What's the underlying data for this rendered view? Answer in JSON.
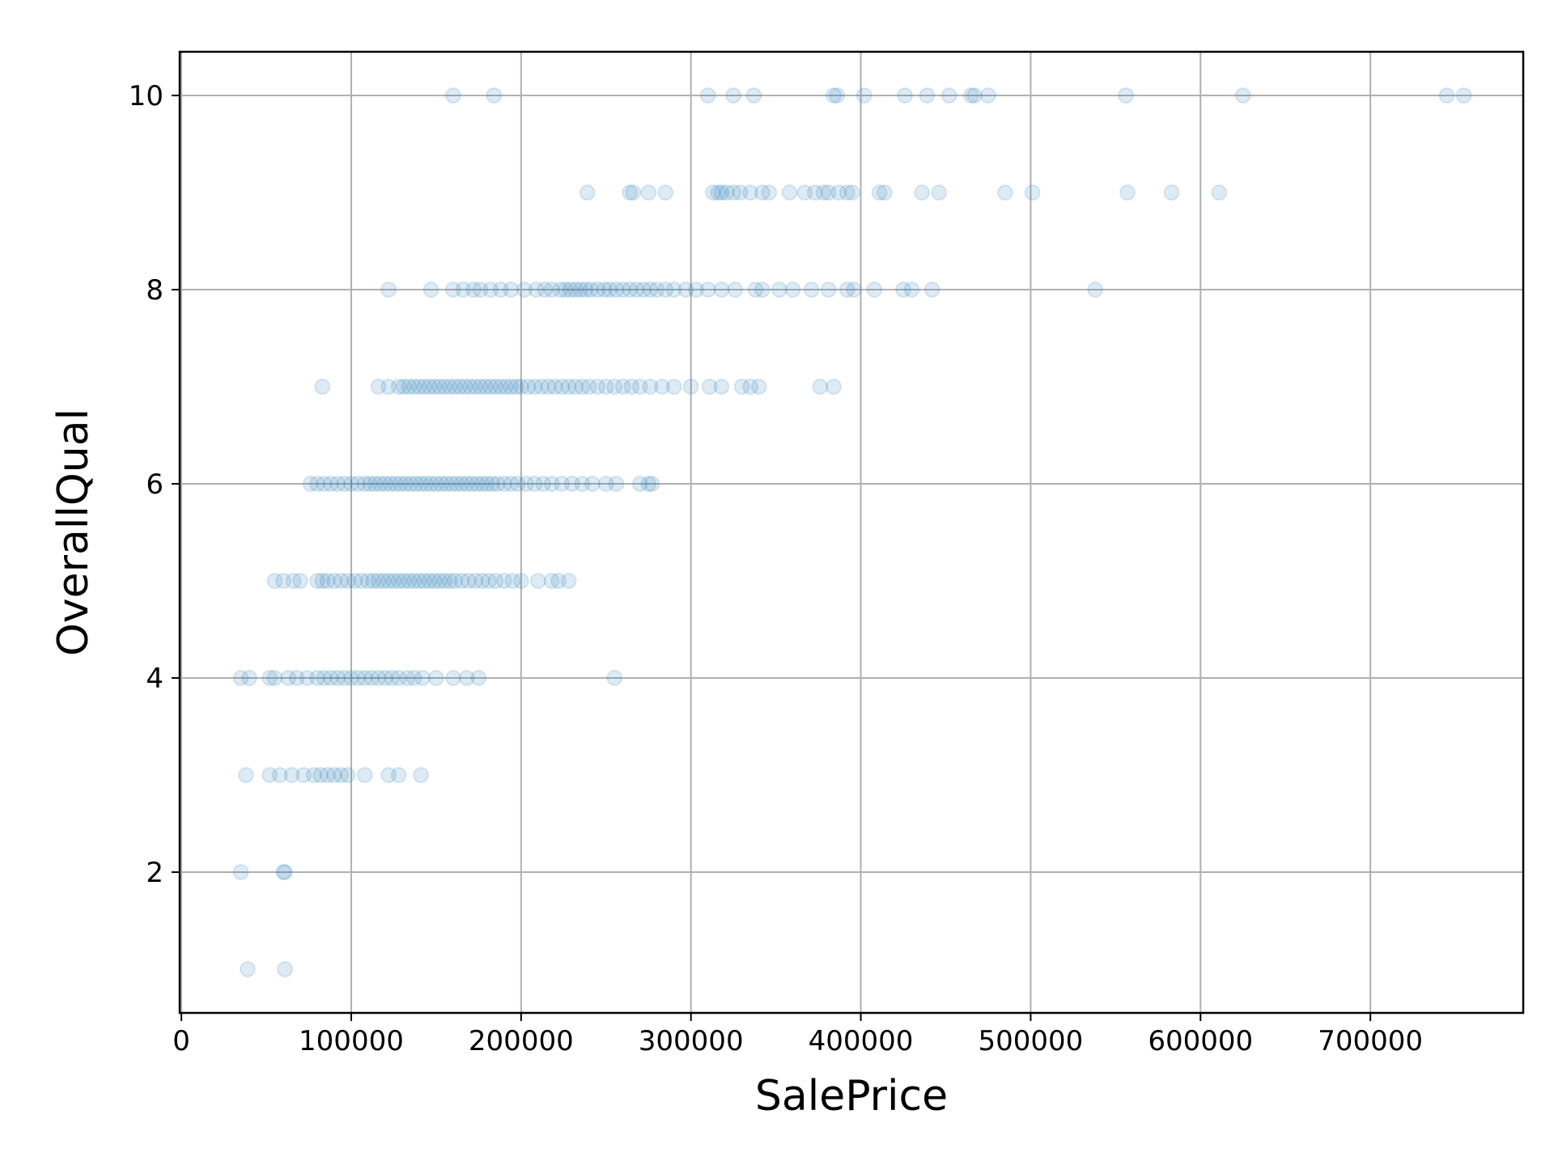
{
  "chart_data": {
    "type": "scatter",
    "xlabel": "SalePrice",
    "ylabel": "OverallQual",
    "xlim": [
      -1000,
      790000
    ],
    "ylim": [
      0.55,
      10.45
    ],
    "xticks": [
      0,
      100000,
      200000,
      300000,
      400000,
      500000,
      600000,
      700000
    ],
    "xtick_labels": [
      "0",
      "100000",
      "200000",
      "300000",
      "400000",
      "500000",
      "600000",
      "700000"
    ],
    "yticks": [
      2,
      4,
      6,
      8,
      10
    ],
    "ytick_labels": [
      "2",
      "4",
      "6",
      "8",
      "10"
    ],
    "grid": true,
    "legend": false,
    "marker_color": "#1f77b4",
    "marker_alpha": 0.15,
    "series": [
      {
        "x": [
          160000,
          184000,
          310000,
          325000,
          337000,
          384000,
          386000,
          402000,
          426000,
          439000,
          452000,
          465000,
          467000,
          475000,
          556000,
          625000,
          745000,
          755000,
          239000,
          264000,
          266000,
          275000,
          285000,
          313000,
          316000,
          318000,
          321000,
          325000,
          329000,
          335000,
          342000,
          346000,
          358000,
          367000,
          373000,
          378000,
          381000,
          387000,
          392000,
          395000,
          411000,
          414000,
          436000,
          446000,
          485000,
          501000,
          557000,
          583000,
          611000,
          122000,
          147000,
          160000,
          166000,
          172000,
          176000,
          182000,
          188000,
          194000,
          202000,
          209000,
          214000,
          218000,
          223000,
          226000,
          229000,
          232000,
          235000,
          238000,
          241000,
          245000,
          249000,
          252000,
          256000,
          260000,
          264000,
          268000,
          272000,
          276000,
          280000,
          285000,
          290000,
          297000,
          303000,
          310000,
          318000,
          326000,
          338000,
          342000,
          352000,
          360000,
          371000,
          381000,
          392000,
          396000,
          408000,
          425000,
          430000,
          442000,
          538000,
          83000,
          116000,
          122000,
          128000,
          131000,
          134000,
          137000,
          140000,
          143000,
          146000,
          149000,
          152000,
          155000,
          158000,
          161000,
          164000,
          167000,
          170000,
          173000,
          176000,
          179000,
          182000,
          185000,
          188000,
          191000,
          194000,
          197000,
          200000,
          204000,
          208000,
          212000,
          216000,
          220000,
          224000,
          228000,
          232000,
          236000,
          240000,
          245000,
          250000,
          255000,
          260000,
          265000,
          270000,
          276000,
          283000,
          290000,
          300000,
          311000,
          318000,
          330000,
          335000,
          340000,
          376000,
          384000,
          76000,
          80000,
          84000,
          88000,
          92000,
          96000,
          100000,
          104000,
          108000,
          111000,
          114000,
          117000,
          120000,
          123000,
          126000,
          129000,
          132000,
          135000,
          138000,
          141000,
          144000,
          147000,
          150000,
          153000,
          156000,
          159000,
          162000,
          165000,
          168000,
          171000,
          174000,
          177000,
          180000,
          183000,
          186000,
          190000,
          194000,
          198000,
          203000,
          208000,
          213000,
          218000,
          224000,
          230000,
          236000,
          242000,
          250000,
          256000,
          270000,
          275000,
          277000,
          55000,
          60000,
          66000,
          70000,
          80000,
          83000,
          86000,
          90000,
          94000,
          98000,
          102000,
          106000,
          110000,
          113000,
          116000,
          119000,
          122000,
          125000,
          128000,
          131000,
          134000,
          137000,
          140000,
          143000,
          146000,
          149000,
          152000,
          155000,
          158000,
          161000,
          165000,
          169000,
          173000,
          177000,
          181000,
          185000,
          190000,
          195000,
          200000,
          210000,
          218000,
          222000,
          228000,
          35000,
          40000,
          52000,
          55000,
          63000,
          68000,
          74000,
          80000,
          84000,
          88000,
          92000,
          96000,
          100000,
          104000,
          108000,
          112000,
          116000,
          120000,
          124000,
          128000,
          133000,
          137000,
          142000,
          150000,
          160000,
          168000,
          175000,
          255000,
          38000,
          52000,
          58000,
          65000,
          72000,
          78000,
          82000,
          86000,
          90000,
          94000,
          98000,
          108000,
          122000,
          128000,
          141000,
          35000,
          60000,
          61000,
          39000,
          61000
        ],
        "y": [
          10,
          10,
          10,
          10,
          10,
          10,
          10,
          10,
          10,
          10,
          10,
          10,
          10,
          10,
          10,
          10,
          10,
          10,
          9,
          9,
          9,
          9,
          9,
          9,
          9,
          9,
          9,
          9,
          9,
          9,
          9,
          9,
          9,
          9,
          9,
          9,
          9,
          9,
          9,
          9,
          9,
          9,
          9,
          9,
          9,
          9,
          9,
          9,
          9,
          8,
          8,
          8,
          8,
          8,
          8,
          8,
          8,
          8,
          8,
          8,
          8,
          8,
          8,
          8,
          8,
          8,
          8,
          8,
          8,
          8,
          8,
          8,
          8,
          8,
          8,
          8,
          8,
          8,
          8,
          8,
          8,
          8,
          8,
          8,
          8,
          8,
          8,
          8,
          8,
          8,
          8,
          8,
          8,
          8,
          8,
          8,
          8,
          8,
          8,
          7,
          7,
          7,
          7,
          7,
          7,
          7,
          7,
          7,
          7,
          7,
          7,
          7,
          7,
          7,
          7,
          7,
          7,
          7,
          7,
          7,
          7,
          7,
          7,
          7,
          7,
          7,
          7,
          7,
          7,
          7,
          7,
          7,
          7,
          7,
          7,
          7,
          7,
          7,
          7,
          7,
          7,
          7,
          7,
          7,
          7,
          7,
          7,
          7,
          7,
          7,
          7,
          7,
          7,
          7,
          6,
          6,
          6,
          6,
          6,
          6,
          6,
          6,
          6,
          6,
          6,
          6,
          6,
          6,
          6,
          6,
          6,
          6,
          6,
          6,
          6,
          6,
          6,
          6,
          6,
          6,
          6,
          6,
          6,
          6,
          6,
          6,
          6,
          6,
          6,
          6,
          6,
          6,
          6,
          6,
          6,
          6,
          6,
          6,
          6,
          6,
          6,
          6,
          6,
          6,
          6,
          5,
          5,
          5,
          5,
          5,
          5,
          5,
          5,
          5,
          5,
          5,
          5,
          5,
          5,
          5,
          5,
          5,
          5,
          5,
          5,
          5,
          5,
          5,
          5,
          5,
          5,
          5,
          5,
          5,
          5,
          5,
          5,
          5,
          5,
          5,
          5,
          5,
          5,
          5,
          5,
          5,
          5,
          5,
          4,
          4,
          4,
          4,
          4,
          4,
          4,
          4,
          4,
          4,
          4,
          4,
          4,
          4,
          4,
          4,
          4,
          4,
          4,
          4,
          4,
          4,
          4,
          4,
          4,
          4,
          4,
          4,
          3,
          3,
          3,
          3,
          3,
          3,
          3,
          3,
          3,
          3,
          3,
          3,
          3,
          3,
          3,
          2,
          2,
          2,
          1,
          1
        ]
      }
    ]
  }
}
